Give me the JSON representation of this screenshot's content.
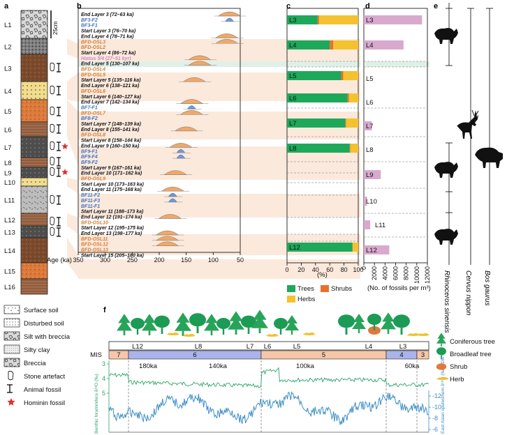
{
  "panels": {
    "a": "a",
    "b": "b",
    "c": "c",
    "d": "d",
    "e": "e",
    "f": "f"
  },
  "scale_bar": "25cm",
  "layers": [
    "L1",
    "L2",
    "L3",
    "L4",
    "L5",
    "L6",
    "L7",
    "L8",
    "L9",
    "L10",
    "L11",
    "L12",
    "L13",
    "L14",
    "L15",
    "L16"
  ],
  "age_axis": {
    "label": "Age (ka)",
    "ticks": [
      "350",
      "300",
      "250",
      "200",
      "150",
      "100",
      "50"
    ]
  },
  "samples": [
    {
      "text": "End Layer 3 (72–63 ka)",
      "kind": "marker"
    },
    {
      "text": "BF3-F2",
      "kind": "blue"
    },
    {
      "text": "BF3-F1",
      "kind": "blue"
    },
    {
      "text": "Start Layer 3 (76–70 ka)",
      "kind": "marker"
    },
    {
      "text": "End Layer 4 (78–71 ka)",
      "kind": "marker"
    },
    {
      "text": "BFD-OSL3",
      "kind": "osl"
    },
    {
      "text": "BFD-OSL2",
      "kind": "osl"
    },
    {
      "text": "Start Layer 4 (86–72 ka)",
      "kind": "marker"
    },
    {
      "text": "Hiatus 5/4 (27–51 kyr)",
      "kind": "hiatus"
    },
    {
      "text": "End Layer 5 (130–107 ka)",
      "kind": "marker"
    },
    {
      "text": "BFD-OSL4",
      "kind": "osl"
    },
    {
      "text": "BFD-OSL5",
      "kind": "osl"
    },
    {
      "text": "Start Layer 5 (135–116 ka)",
      "kind": "marker"
    },
    {
      "text": "End Layer 6 (138–121 ka)",
      "kind": "marker"
    },
    {
      "text": "BFD-OSL6",
      "kind": "osl"
    },
    {
      "text": "Start Layer 6 (140–127 ka)",
      "kind": "marker"
    },
    {
      "text": "End Layer 7 (142–134 ka)",
      "kind": "marker"
    },
    {
      "text": "BF7-F1",
      "kind": "blue"
    },
    {
      "text": "BFD-OSL7",
      "kind": "osl"
    },
    {
      "text": "BF8-F2",
      "kind": "blue"
    },
    {
      "text": "Start Layer 7 (148–139 ka)",
      "kind": "marker"
    },
    {
      "text": "End Layer 8 (155–141 ka)",
      "kind": "marker"
    },
    {
      "text": "BFD-OSL8",
      "kind": "osl"
    },
    {
      "text": "Start Layer 8 (158–144 ka)",
      "kind": "marker"
    },
    {
      "text": "End Layer 9 (160–150 ka)",
      "kind": "marker"
    },
    {
      "text": "BF9-F1",
      "kind": "blue"
    },
    {
      "text": "BF9-F4",
      "kind": "blue"
    },
    {
      "text": "BF9-F2",
      "kind": "blue"
    },
    {
      "text": "Start Layer 9 (167–161 ka)",
      "kind": "marker"
    },
    {
      "text": "End Layer 10 (171–162 ka)",
      "kind": "marker"
    },
    {
      "text": "BFD-OSL9",
      "kind": "osl"
    },
    {
      "text": "Start Layer 10 (173–163 ka)",
      "kind": "marker"
    },
    {
      "text": "End Layer 11 (175–168 ka)",
      "kind": "marker"
    },
    {
      "text": "BF11-F2",
      "kind": "blue"
    },
    {
      "text": "BF11-F3",
      "kind": "blue"
    },
    {
      "text": "BF11-F1",
      "kind": "blue"
    },
    {
      "text": "Start Layer 11 (188–173 ka)",
      "kind": "marker"
    },
    {
      "text": "End Layer 12 (191–174 ka)",
      "kind": "marker"
    },
    {
      "text": "BFD-OSL10",
      "kind": "osl"
    },
    {
      "text": "Start Layer 12 (195–175 ka)",
      "kind": "marker"
    },
    {
      "text": "End Layer 13 (198–177 ka)",
      "kind": "marker"
    },
    {
      "text": "BFD-OSL11",
      "kind": "osl"
    },
    {
      "text": "BFD-OSL12",
      "kind": "osl"
    },
    {
      "text": "BFD-OSL13",
      "kind": "osl"
    },
    {
      "text": "Start Layer 15 (205–180 ka)",
      "kind": "marker"
    }
  ],
  "legend_a": [
    {
      "label": "Surface soil",
      "icon": "surface-soil-swatch"
    },
    {
      "label": "Disturbed soil",
      "icon": "disturbed-soil-swatch"
    },
    {
      "label": "Silt with breccia",
      "icon": "silt-breccia-swatch"
    },
    {
      "label": "Silty clay",
      "icon": "silty-clay-swatch"
    },
    {
      "label": "Breccia",
      "icon": "breccia-swatch"
    },
    {
      "label": "Stone artefact",
      "icon": "stone-artefact-icon"
    },
    {
      "label": "Animal fossil",
      "icon": "bone-icon"
    },
    {
      "label": "Hominin fossil",
      "icon": "star-icon",
      "color": "#e0302a"
    }
  ],
  "colors": {
    "trees": "#1ea85a",
    "shrubs": "#e8702c",
    "herbs": "#f4c22e",
    "fossil_bar": "#d9a9cd",
    "band": "#fbe9dc",
    "hiatus": "#dff0e7",
    "mis_warm": "#f6c6a8",
    "mis_cold": "#aab4ea",
    "benthic": "#2ea36a",
    "speleothem": "#3b8dc4",
    "osl": "#f0a868",
    "blue_sample": "#6f98d9"
  },
  "veg": {
    "axis_ticks": [
      "0",
      "20",
      "40",
      "60",
      "80",
      "100"
    ],
    "axis_label": "(%)",
    "legend": {
      "trees": "Trees",
      "shrubs": "Shrubs",
      "herbs": "Herbs"
    },
    "rows": [
      {
        "label": "L3",
        "trees": 43,
        "shrubs": 2,
        "herbs": 55
      },
      {
        "label": "L4",
        "trees": 60,
        "shrubs": 5,
        "herbs": 35
      },
      {
        "label": "L5",
        "trees": 76,
        "shrubs": 3,
        "herbs": 21
      },
      {
        "label": "L6",
        "trees": 85,
        "shrubs": 2,
        "herbs": 13
      },
      {
        "label": "L7",
        "trees": 82,
        "shrubs": 1,
        "herbs": 17
      },
      {
        "label": "L8",
        "trees": 88,
        "shrubs": 1,
        "herbs": 11
      },
      {
        "label": "L12",
        "trees": 92,
        "shrubs": 0,
        "herbs": 8
      }
    ]
  },
  "fossils": {
    "axis_ticks": [
      "0",
      "2000",
      "4000",
      "6000",
      "8000",
      "10000",
      "12000"
    ],
    "axis_label": "(No. of fossils per m³)",
    "rows": [
      {
        "label": "L3",
        "value": 11000
      },
      {
        "label": "L4",
        "value": 7500
      },
      {
        "label": "L5",
        "value": 0
      },
      {
        "label": "L6",
        "value": 0
      },
      {
        "label": "L7",
        "value": 1500
      },
      {
        "label": "L8",
        "value": 0
      },
      {
        "label": "L9",
        "value": 3200
      },
      {
        "label": "L10",
        "value": 600
      },
      {
        "label": "L11",
        "value": 1200
      },
      {
        "label": "L12",
        "value": 4800
      }
    ]
  },
  "species": [
    "Rhinoceros sinensis",
    "Cervus nippon",
    "Bos gaurus"
  ],
  "mis": {
    "label": "MIS",
    "stages": [
      {
        "name": "7",
        "warm": true
      },
      {
        "name": "6",
        "warm": false
      },
      {
        "name": "5",
        "warm": true
      },
      {
        "name": "4",
        "warm": false
      },
      {
        "name": "3",
        "warm": true
      }
    ],
    "layer_marks": [
      "L12",
      "L8",
      "L7",
      "L6",
      "L5",
      "L4",
      "L3"
    ],
    "age_ticks": [
      "180ka",
      "140ka",
      "100ka",
      "60ka"
    ]
  },
  "axes_f": {
    "benthic_label": "Benthic foraminifera δ¹⁸O (‰)",
    "benthic_ticks": [
      "3",
      "4",
      "5"
    ],
    "spele_label": "East Asian speleothem δ¹⁸O (‰VPDB ‰)",
    "spele_ticks": [
      "-12",
      "-10",
      "-8",
      "-6"
    ]
  },
  "legend_f": [
    {
      "label": "Coniferous tree",
      "icon": "coniferous-tree-icon"
    },
    {
      "label": "Broadleaf tree",
      "icon": "broadleaf-tree-icon"
    },
    {
      "label": "Shrub",
      "icon": "shrub-icon"
    },
    {
      "label": "Herb",
      "icon": "herb-icon"
    }
  ]
}
